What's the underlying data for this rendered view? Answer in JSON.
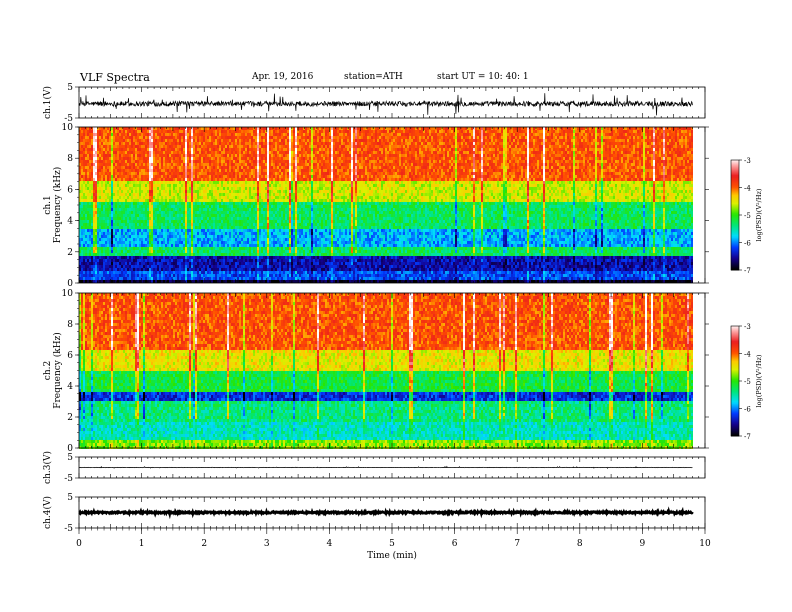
{
  "header": {
    "title": "VLF  Spectra",
    "date": "Apr. 19, 2016",
    "station": "station=ATH",
    "start": "start  UT  =    10: 40: 1"
  },
  "chart_data": {
    "type": "heatmap",
    "panels": [
      {
        "id": "ch1-waveform",
        "type": "line",
        "ylabel": "ch.1(V)",
        "ylim": [
          -5,
          5
        ],
        "yticks": [
          "5",
          "-5"
        ],
        "baseline": 0,
        "noise_amplitude": 0.8,
        "spike_amplitude": 3.5
      },
      {
        "id": "ch1-spectrogram",
        "type": "heatmap",
        "ylabel": "ch.1",
        "ylabel2": "Frequency (kHz)",
        "ylim": [
          0,
          10
        ],
        "yticks": [
          "0",
          "2",
          "4",
          "6",
          "8",
          "10"
        ],
        "colorbar": {
          "label": "log(PSD)(V²/Hz)",
          "ticks": [
            "-3",
            "-4",
            "-5",
            "-6",
            "-7"
          ],
          "range": [
            -7,
            -3
          ]
        },
        "bands": [
          {
            "freq": [
              0,
              0.3
            ],
            "level": -6.9
          },
          {
            "freq": [
              0.3,
              0.9
            ],
            "level": -6.2
          },
          {
            "freq": [
              0.9,
              1.8
            ],
            "level": -6.5
          },
          {
            "freq": [
              1.8,
              2.4
            ],
            "level": -5.3
          },
          {
            "freq": [
              2.4,
              3.6
            ],
            "level": -5.9
          },
          {
            "freq": [
              3.6,
              5.2
            ],
            "level": -5.3
          },
          {
            "freq": [
              5.2,
              6.6
            ],
            "level": -4.6
          },
          {
            "freq": [
              6.6,
              10
            ],
            "level": -3.95
          }
        ]
      },
      {
        "id": "ch2-spectrogram",
        "type": "heatmap",
        "ylabel": "ch.2",
        "ylabel2": "Frequency (kHz)",
        "ylim": [
          0,
          10
        ],
        "yticks": [
          "0",
          "2",
          "4",
          "6",
          "8",
          "10"
        ],
        "colorbar": {
          "label": "log(PSD)(V²/Hz)",
          "ticks": [
            "-3",
            "-4",
            "-5",
            "-6",
            "-7"
          ],
          "range": [
            -7,
            -3
          ]
        },
        "bands": [
          {
            "freq": [
              0,
              0.6
            ],
            "level": -4.8
          },
          {
            "freq": [
              0.6,
              1.8
            ],
            "level": -5.6
          },
          {
            "freq": [
              1.8,
              3.2
            ],
            "level": -5.4
          },
          {
            "freq": [
              3.2,
              3.8
            ],
            "level": -6.3
          },
          {
            "freq": [
              3.8,
              5.0
            ],
            "level": -5.2
          },
          {
            "freq": [
              5.0,
              6.4
            ],
            "level": -4.5
          },
          {
            "freq": [
              6.4,
              10
            ],
            "level": -3.95
          }
        ]
      },
      {
        "id": "ch3-waveform",
        "type": "line",
        "ylabel": "ch.3(V)",
        "ylim": [
          -5,
          5
        ],
        "yticks": [
          "5",
          "-5"
        ],
        "baseline": 0,
        "noise_amplitude": 0.08,
        "spike_amplitude": 0.4
      },
      {
        "id": "ch4-waveform",
        "type": "line",
        "ylabel": "ch.4(V)",
        "ylim": [
          -5,
          5
        ],
        "yticks": [
          "5",
          "-5"
        ],
        "baseline": 0,
        "noise_amplitude": 0.25,
        "spike_amplitude": 0.3
      }
    ],
    "xaxis": {
      "label": "Time  (min)",
      "range": [
        0,
        10
      ],
      "ticks": [
        "0",
        "1",
        "2",
        "3",
        "4",
        "5",
        "6",
        "7",
        "8",
        "9",
        "10"
      ],
      "data_end": 9.8
    }
  }
}
